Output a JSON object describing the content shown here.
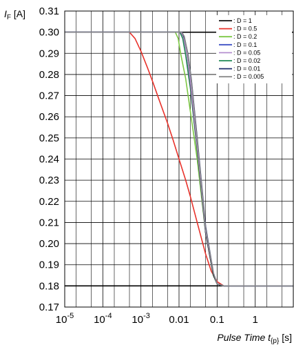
{
  "chart_data": {
    "type": "line",
    "x_scale": "log",
    "xlim": [
      1e-05,
      10
    ],
    "ylim": [
      0.17,
      0.31
    ],
    "grid": true,
    "legend_position": "top-right",
    "ylabel": {
      "symbol": "I",
      "subscript": "F",
      "unit": " [A]"
    },
    "xlabel": {
      "text": "Pulse Time t",
      "subscript": "{p}",
      "unit": " [s]"
    },
    "y_ticks": [
      "0.17",
      "0.18",
      "0.19",
      "0.20",
      "0.21",
      "0.22",
      "0.23",
      "0.24",
      "0.25",
      "0.26",
      "0.27",
      "0.28",
      "0.29",
      "0.30",
      "0.31"
    ],
    "y_tick_values": [
      0.17,
      0.18,
      0.19,
      0.2,
      0.21,
      0.22,
      0.23,
      0.24,
      0.25,
      0.26,
      0.27,
      0.28,
      0.29,
      0.3,
      0.31
    ],
    "x_ticks": [
      {
        "value": 1e-05,
        "base": "10",
        "exp": "-5",
        "label": ""
      },
      {
        "value": 0.0001,
        "base": "10",
        "exp": "-4",
        "label": ""
      },
      {
        "value": 0.001,
        "base": "10",
        "exp": "-3",
        "label": ""
      },
      {
        "value": 0.01,
        "base": "",
        "exp": "",
        "label": "0.01"
      },
      {
        "value": 0.1,
        "base": "",
        "exp": "",
        "label": "0.1"
      },
      {
        "value": 1,
        "base": "",
        "exp": "",
        "label": "1"
      }
    ],
    "reference_lines": [
      0.3,
      0.18
    ],
    "series": [
      {
        "name": ": D = 1",
        "color": "#111111",
        "x": [
          1e-05,
          0.011,
          0.013,
          0.016,
          0.02,
          0.03,
          0.05,
          0.08,
          0.1,
          0.15,
          0.3,
          10
        ],
        "y": [
          0.3,
          0.3,
          0.298,
          0.29,
          0.275,
          0.245,
          0.205,
          0.185,
          0.181,
          0.18,
          0.18,
          0.18
        ]
      },
      {
        "name": ": D = 0.5",
        "color": "#e8312a",
        "x": [
          1e-05,
          0.0005,
          0.0007,
          0.001,
          0.0015,
          0.002,
          0.003,
          0.005,
          0.007,
          0.01,
          0.015,
          0.02,
          0.03,
          0.05,
          0.07,
          0.1,
          0.15,
          0.3,
          10
        ],
        "y": [
          0.3,
          0.3,
          0.297,
          0.291,
          0.283,
          0.277,
          0.268,
          0.257,
          0.249,
          0.24,
          0.23,
          0.222,
          0.21,
          0.195,
          0.187,
          0.182,
          0.18,
          0.18,
          0.18
        ]
      },
      {
        "name": ": D = 0.2",
        "color": "#7cc843",
        "x": [
          1e-05,
          0.008,
          0.0095,
          0.011,
          0.015,
          0.02,
          0.03,
          0.05,
          0.08,
          0.1,
          0.15,
          0.3,
          10
        ],
        "y": [
          0.3,
          0.3,
          0.297,
          0.29,
          0.278,
          0.262,
          0.24,
          0.205,
          0.185,
          0.181,
          0.18,
          0.18,
          0.18
        ]
      },
      {
        "name": ": D = 0.1",
        "color": "#3b4fc4",
        "x": [
          1e-05,
          0.0115,
          0.0135,
          0.016,
          0.02,
          0.03,
          0.05,
          0.08,
          0.1,
          0.15,
          0.3,
          10
        ],
        "y": [
          0.3,
          0.3,
          0.298,
          0.291,
          0.277,
          0.247,
          0.206,
          0.186,
          0.181,
          0.18,
          0.18,
          0.18
        ]
      },
      {
        "name": ": D = 0.05",
        "color": "#b48fcf",
        "x": [
          1e-05,
          0.0112,
          0.013,
          0.016,
          0.02,
          0.03,
          0.05,
          0.08,
          0.1,
          0.15,
          0.3,
          10
        ],
        "y": [
          0.3,
          0.3,
          0.298,
          0.29,
          0.276,
          0.246,
          0.206,
          0.186,
          0.181,
          0.18,
          0.18,
          0.18
        ]
      },
      {
        "name": ": D = 0.02",
        "color": "#1f8a55",
        "x": [
          1e-05,
          0.0105,
          0.0125,
          0.015,
          0.02,
          0.03,
          0.05,
          0.08,
          0.1,
          0.15,
          0.3,
          10
        ],
        "y": [
          0.3,
          0.3,
          0.297,
          0.289,
          0.273,
          0.244,
          0.205,
          0.185,
          0.181,
          0.18,
          0.18,
          0.18
        ]
      },
      {
        "name": ": D = 0.01",
        "color": "#1c2a6b",
        "x": [
          1e-05,
          0.012,
          0.014,
          0.017,
          0.021,
          0.03,
          0.05,
          0.08,
          0.1,
          0.15,
          0.3,
          10
        ],
        "y": [
          0.3,
          0.3,
          0.297,
          0.29,
          0.278,
          0.25,
          0.208,
          0.186,
          0.181,
          0.18,
          0.18,
          0.18
        ]
      },
      {
        "name": ": D = 0.005",
        "color": "#8a8a8a",
        "x": [
          1e-05,
          0.0118,
          0.0138,
          0.0165,
          0.0205,
          0.03,
          0.05,
          0.08,
          0.1,
          0.15,
          0.3,
          10
        ],
        "y": [
          0.3,
          0.3,
          0.298,
          0.291,
          0.279,
          0.249,
          0.207,
          0.186,
          0.181,
          0.18,
          0.18,
          0.18
        ]
      }
    ]
  }
}
